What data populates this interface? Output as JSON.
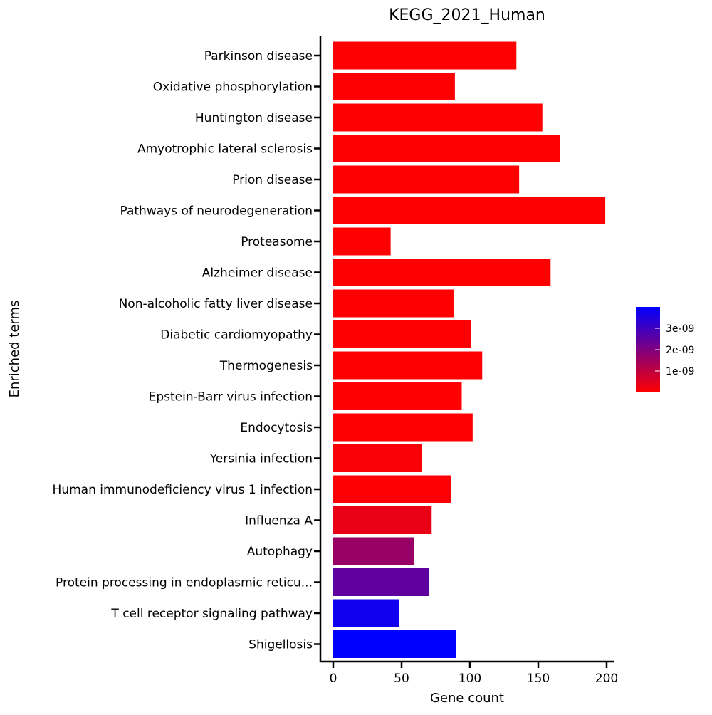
{
  "chart_data": {
    "type": "bar",
    "orientation": "horizontal",
    "title": "KEGG_2021_Human",
    "xlabel": "Gene count",
    "ylabel": "Enriched terms",
    "xlim": [
      0,
      208
    ],
    "xticks": [
      0,
      50,
      100,
      150,
      200
    ],
    "grid": false,
    "categories": [
      "Parkinson disease",
      "Oxidative phosphorylation",
      "Huntington disease",
      "Amyotrophic lateral sclerosis",
      "Prion disease",
      "Pathways of neurodegeneration",
      "Proteasome",
      "Alzheimer disease",
      "Non-alcoholic fatty liver disease",
      "Diabetic cardiomyopathy",
      "Thermogenesis",
      "Epstein-Barr virus infection",
      "Endocytosis",
      "Yersinia infection",
      "Human immunodeficiency virus 1 infection",
      "Influenza A",
      "Autophagy",
      "Protein processing in endoplasmic reticu...",
      "T cell receptor signaling pathway",
      "Shigellosis"
    ],
    "values": [
      134,
      89,
      153,
      166,
      136,
      199,
      42,
      159,
      88,
      101,
      109,
      94,
      102,
      65,
      86,
      72,
      59,
      70,
      48,
      90
    ],
    "color_values": [
      1e-20,
      1e-20,
      1e-20,
      1e-20,
      1e-20,
      1e-20,
      1e-14,
      1e-14,
      1e-12,
      1e-12,
      1e-11,
      1e-11,
      1e-11,
      1e-10,
      5e-11,
      3.3e-10,
      1.6e-09,
      2.5e-09,
      3.75e-09,
      4e-09
    ],
    "colorbar": {
      "ticks": [
        1e-09,
        2e-09,
        3e-09
      ],
      "tick_labels": [
        "1e-09",
        "2e-09",
        "3e-09"
      ],
      "range": [
        0,
        4e-09
      ],
      "color_low": "#ff0000",
      "color_high": "#0000ff",
      "placement": "right"
    }
  }
}
